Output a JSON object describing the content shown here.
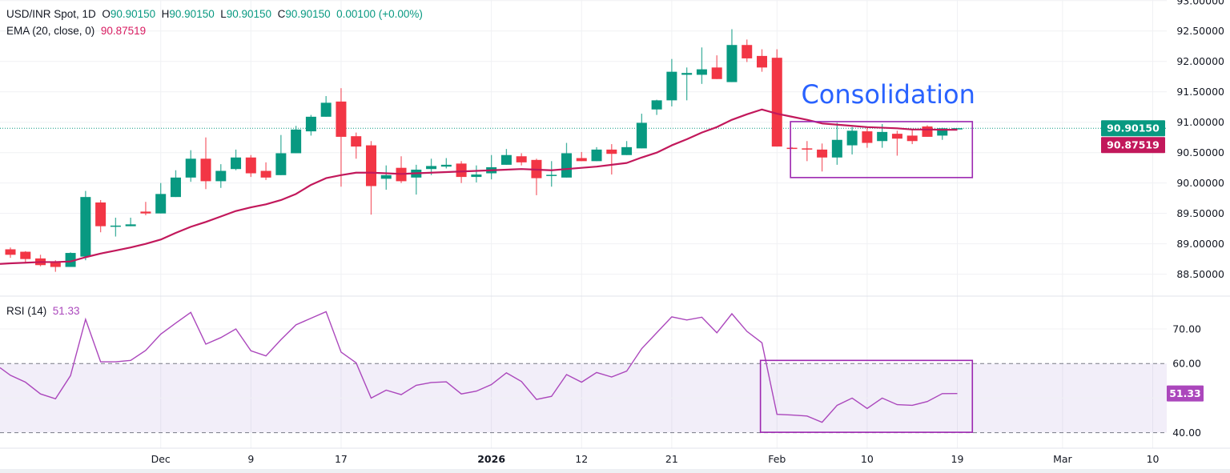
{
  "header": {
    "symbol": "USD/INR Spot, 1D",
    "o_label": "O",
    "o": "90.90150",
    "h_label": "H",
    "h": "90.90150",
    "l_label": "L",
    "l": "90.90150",
    "c_label": "C",
    "c": "90.90150",
    "change": "0.00100 (+0.00%)",
    "ema_label": "EMA (20, close, 0)",
    "ema_value": "90.87519",
    "rsi_label": "RSI (14)",
    "rsi_value": "51.33"
  },
  "colors": {
    "up": "#089981",
    "down": "#f23645",
    "ema": "#c2185b",
    "rsi": "#ab47bc",
    "annotation_box": "#9c27b0",
    "annotation_text": "#2962ff"
  },
  "chart_data": [
    {
      "type": "candlestick",
      "title": "USD/INR Spot, 1D",
      "ylim": [
        88.14,
        93.01
      ],
      "y_ticks": [
        "93.00000",
        "92.50000",
        "92.00000",
        "91.50000",
        "91.00000",
        "90.50000",
        "90.00000",
        "89.50000",
        "89.00000",
        "88.50000"
      ],
      "y_tick_values": [
        93.0,
        92.5,
        92.0,
        91.5,
        91.0,
        90.5,
        90.0,
        89.5,
        89.0,
        88.5
      ],
      "x_ticks": [
        {
          "label": "Dec",
          "bar": 10,
          "bold": false
        },
        {
          "label": "9",
          "bar": 16,
          "bold": false
        },
        {
          "label": "17",
          "bar": 22,
          "bold": false
        },
        {
          "label": "2026",
          "bar": 32,
          "bold": true
        },
        {
          "label": "12",
          "bar": 38,
          "bold": false
        },
        {
          "label": "21",
          "bar": 44,
          "bold": false
        },
        {
          "label": "Feb",
          "bar": 51,
          "bold": false
        },
        {
          "label": "10",
          "bar": 57,
          "bold": false
        },
        {
          "label": "19",
          "bar": 63,
          "bold": false
        },
        {
          "label": "Mar",
          "bar": 70,
          "bold": false
        },
        {
          "label": "10",
          "bar": 76,
          "bold": false
        }
      ],
      "ohlc": [
        [
          88.91,
          88.94,
          88.77,
          88.82
        ],
        [
          88.87,
          88.88,
          88.69,
          88.75
        ],
        [
          88.76,
          88.82,
          88.63,
          88.65
        ],
        [
          88.7,
          88.73,
          88.54,
          88.62
        ],
        [
          88.62,
          88.86,
          88.62,
          88.85
        ],
        [
          88.79,
          89.87,
          88.73,
          89.77
        ],
        [
          89.68,
          89.72,
          89.19,
          89.29
        ],
        [
          89.29,
          89.43,
          89.12,
          89.3
        ],
        [
          89.29,
          89.43,
          89.29,
          89.32
        ],
        [
          89.53,
          89.69,
          89.47,
          89.5
        ],
        [
          89.5,
          90.0,
          89.5,
          89.82
        ],
        [
          89.77,
          90.21,
          89.77,
          90.09
        ],
        [
          90.09,
          90.54,
          90.02,
          90.4
        ],
        [
          90.4,
          90.75,
          89.9,
          90.03
        ],
        [
          90.03,
          90.31,
          89.92,
          90.2
        ],
        [
          90.23,
          90.55,
          90.21,
          90.42
        ],
        [
          90.42,
          90.46,
          90.1,
          90.16
        ],
        [
          90.2,
          90.34,
          90.05,
          90.09
        ],
        [
          90.13,
          90.79,
          90.13,
          90.49
        ],
        [
          90.49,
          90.94,
          90.49,
          90.88
        ],
        [
          90.85,
          91.12,
          90.78,
          91.09
        ],
        [
          91.09,
          91.43,
          91.09,
          91.32
        ],
        [
          91.34,
          91.56,
          89.94,
          90.76
        ],
        [
          90.77,
          90.83,
          90.4,
          90.6
        ],
        [
          90.62,
          90.69,
          89.48,
          89.95
        ],
        [
          90.07,
          90.29,
          89.89,
          90.13
        ],
        [
          90.25,
          90.44,
          90.0,
          90.03
        ],
        [
          90.09,
          90.3,
          89.81,
          90.22
        ],
        [
          90.23,
          90.4,
          90.13,
          90.28
        ],
        [
          90.27,
          90.41,
          90.24,
          90.3
        ],
        [
          90.32,
          90.36,
          90.0,
          90.1
        ],
        [
          90.1,
          90.29,
          90.01,
          90.14
        ],
        [
          90.16,
          90.46,
          90.06,
          90.26
        ],
        [
          90.3,
          90.56,
          90.3,
          90.46
        ],
        [
          90.44,
          90.49,
          90.29,
          90.34
        ],
        [
          90.38,
          90.4,
          89.8,
          90.08
        ],
        [
          90.13,
          90.36,
          89.94,
          90.135
        ],
        [
          90.09,
          90.66,
          90.09,
          90.49
        ],
        [
          90.41,
          90.51,
          90.36,
          90.36
        ],
        [
          90.36,
          90.59,
          90.36,
          90.55
        ],
        [
          90.55,
          90.64,
          90.14,
          90.48
        ],
        [
          90.46,
          90.69,
          90.46,
          90.59
        ],
        [
          90.57,
          91.14,
          90.57,
          90.99
        ],
        [
          91.21,
          91.37,
          91.12,
          91.36
        ],
        [
          91.36,
          92.04,
          91.26,
          91.83
        ],
        [
          91.78,
          91.9,
          91.36,
          91.81
        ],
        [
          91.78,
          92.23,
          91.63,
          91.87
        ],
        [
          91.9,
          92.1,
          91.71,
          91.71
        ],
        [
          91.66,
          92.53,
          91.66,
          92.27
        ],
        [
          92.27,
          92.36,
          91.99,
          92.05
        ],
        [
          92.09,
          92.2,
          91.83,
          91.9
        ],
        [
          92.06,
          92.2,
          90.6,
          90.6
        ],
        [
          90.58,
          90.59,
          90.57,
          90.575
        ],
        [
          90.57,
          90.69,
          90.36,
          90.55
        ],
        [
          90.55,
          90.65,
          90.19,
          90.42
        ],
        [
          90.42,
          90.99,
          90.3,
          90.71
        ],
        [
          90.62,
          90.92,
          90.47,
          90.86
        ],
        [
          90.85,
          90.91,
          90.58,
          90.66
        ],
        [
          90.69,
          90.97,
          90.58,
          90.84
        ],
        [
          90.81,
          90.86,
          90.45,
          90.73
        ],
        [
          90.78,
          90.87,
          90.64,
          90.69
        ],
        [
          90.93,
          90.95,
          90.76,
          90.76
        ],
        [
          90.78,
          90.91,
          90.71,
          90.9
        ],
        [
          90.9015,
          90.9015,
          90.9015,
          90.9015
        ]
      ],
      "ema20": [
        88.68,
        88.69,
        88.7,
        88.7,
        88.71,
        88.78,
        88.84,
        88.89,
        88.94,
        89.0,
        89.07,
        89.18,
        89.28,
        89.36,
        89.45,
        89.54,
        89.6,
        89.65,
        89.72,
        89.82,
        89.97,
        90.08,
        90.13,
        90.17,
        90.17,
        90.16,
        90.15,
        90.16,
        90.17,
        90.18,
        90.19,
        90.2,
        90.21,
        90.22,
        90.23,
        90.22,
        90.21,
        90.23,
        90.25,
        90.27,
        90.3,
        90.33,
        90.42,
        90.5,
        90.62,
        90.72,
        90.83,
        90.92,
        91.04,
        91.13,
        91.21,
        91.14,
        91.09,
        91.04,
        90.98,
        90.96,
        90.94,
        90.92,
        90.91,
        90.9,
        90.88,
        90.88,
        90.876,
        90.875
      ],
      "last_price": "90.90150",
      "last_price_value": 90.9015,
      "ema_tag": "90.87519",
      "ema_tag_value": 90.87519,
      "annotation": {
        "text": "Consolidation",
        "bar_from": 51.9,
        "bar_to": 64.0,
        "price_top": 91.01,
        "price_bottom": 90.09,
        "text_bar": 58.4,
        "text_price": 91.47
      }
    },
    {
      "type": "line",
      "title": "RSI (14)",
      "ylim": [
        35.5,
        79.5
      ],
      "y_ticks": [
        "70.00",
        "60.00",
        "40.00"
      ],
      "y_tick_values": [
        70,
        60,
        40
      ],
      "band": [
        40,
        60
      ],
      "gridline_values": [
        70,
        50
      ],
      "values": [
        56.6,
        54.6,
        51.2,
        49.8,
        56.5,
        72.8,
        60.5,
        60.5,
        60.9,
        63.8,
        68.5,
        71.7,
        74.8,
        65.6,
        67.5,
        70.0,
        63.7,
        62.2,
        66.9,
        71.2,
        73.1,
        75.0,
        63.3,
        60.2,
        50.0,
        52.3,
        51.0,
        53.7,
        54.5,
        54.7,
        51.2,
        52.0,
        53.9,
        57.3,
        54.8,
        49.6,
        50.5,
        56.8,
        54.6,
        57.4,
        56.1,
        57.8,
        64.3,
        68.9,
        73.5,
        72.6,
        73.4,
        68.9,
        74.4,
        69.3,
        66.0,
        45.3,
        45.1,
        44.8,
        43.0,
        47.9,
        50.0,
        47.0,
        50.0,
        48.1,
        47.9,
        49.0,
        51.3,
        51.33
      ],
      "start_value": 58.8,
      "last_tag": "51.33",
      "last_value": 51.33,
      "annotation": {
        "bar_from": 49.9,
        "bar_to": 64.0,
        "value_top": 60.9,
        "value_bottom": 40.1
      }
    }
  ]
}
